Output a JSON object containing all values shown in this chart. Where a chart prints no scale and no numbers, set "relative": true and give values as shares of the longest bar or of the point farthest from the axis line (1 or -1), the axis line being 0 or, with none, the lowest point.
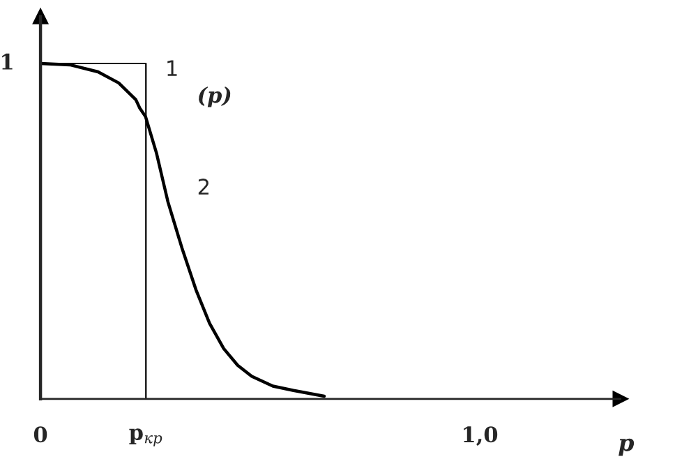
{
  "chart_data": {
    "type": "line",
    "relative": true,
    "xlabel": "p",
    "xlim": [
      0,
      1.32
    ],
    "xticks": [
      {
        "value": 0,
        "label": "0"
      },
      {
        "value": 0.24,
        "label": "p$_{кр}$"
      },
      {
        "value": 1.0,
        "label": "1,0"
      }
    ],
    "series": [
      {
        "color": "#000000",
        "x": [
          0,
          0.24,
          0.24
        ],
        "values": [
          1,
          1,
          0
        ]
      },
      {
        "color": "#000000",
        "x": [
          0,
          0.067,
          0.131,
          0.178,
          0.217,
          0.226,
          0.239,
          0.264,
          0.29,
          0.322,
          0.354,
          0.385,
          0.417,
          0.449,
          0.481,
          0.529,
          0.576,
          0.646
        ],
        "values": [
          1.0,
          0.996,
          0.975,
          0.942,
          0.892,
          0.867,
          0.842,
          0.733,
          0.588,
          0.45,
          0.325,
          0.225,
          0.15,
          0.1,
          0.067,
          0.038,
          0.025,
          0.008
        ]
      }
    ],
    "annotations": [
      "1",
      "(p)",
      "2",
      "1"
    ],
    "grid": false,
    "legend": false,
    "marker": "none",
    "line_style": "solid"
  }
}
